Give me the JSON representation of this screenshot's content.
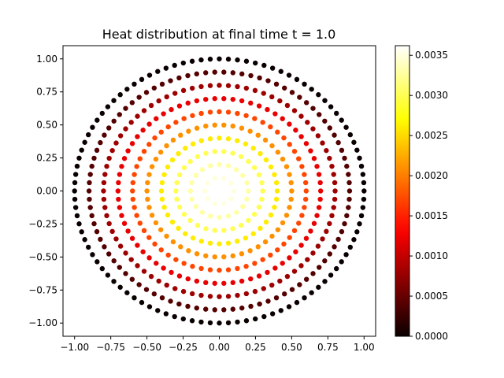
{
  "chart_data": {
    "type": "scatter",
    "title": "Heat distribution at final time t = 1.0",
    "xlabel": "",
    "ylabel": "",
    "xlim": [
      -1.08,
      1.08
    ],
    "ylim": [
      -1.1,
      1.1
    ],
    "x_ticks": [
      "−1.00",
      "−0.75",
      "−0.50",
      "−0.25",
      "0.00",
      "0.25",
      "0.50",
      "0.75",
      "1.00"
    ],
    "y_ticks": [
      "−1.00",
      "−0.75",
      "−0.50",
      "−0.25",
      "0.00",
      "0.25",
      "0.50",
      "0.75",
      "1.00"
    ],
    "colorbar": {
      "colormap": "hot",
      "range": [
        0,
        0.00362
      ],
      "ticks": [
        "0.0000",
        "0.0005",
        "0.0010",
        "0.0015",
        "0.0020",
        "0.0025",
        "0.0030",
        "0.0035"
      ]
    },
    "points_description": "Points on 10 concentric rings (radius 0.1..1.0, 10*k points per ring); value decreases from center (~0.0036) to edge (0)",
    "rings": [
      {
        "r": 0.1,
        "n": 10,
        "value": 0.0035
      },
      {
        "r": 0.2,
        "n": 20,
        "value": 0.0033
      },
      {
        "r": 0.3,
        "n": 30,
        "value": 0.003
      },
      {
        "r": 0.4,
        "n": 40,
        "value": 0.0026
      },
      {
        "r": 0.5,
        "n": 50,
        "value": 0.0021
      },
      {
        "r": 0.6,
        "n": 60,
        "value": 0.0017
      },
      {
        "r": 0.7,
        "n": 70,
        "value": 0.0012
      },
      {
        "r": 0.8,
        "n": 80,
        "value": 0.0008
      },
      {
        "r": 0.9,
        "n": 90,
        "value": 0.0004
      },
      {
        "r": 1.0,
        "n": 100,
        "value": 0.0
      }
    ]
  }
}
